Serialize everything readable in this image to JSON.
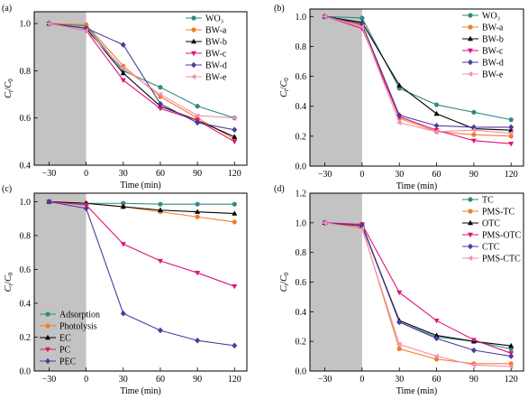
{
  "chart_data": [
    {
      "panel": "(a)",
      "type": "line",
      "xlabel": "Time (min)",
      "ylabel": "C_t/C_0",
      "x": [
        -30,
        0,
        30,
        60,
        90,
        120
      ],
      "xlim": [
        -42,
        130
      ],
      "ylim": [
        0.4,
        1.05
      ],
      "yticks": [
        "0.4",
        "0.6",
        "0.8",
        "1.0"
      ],
      "ytick_values": [
        0.4,
        0.6,
        0.8,
        1.0
      ],
      "shade": [
        -42,
        0
      ],
      "legend": "top-right",
      "series": [
        {
          "name": "WO₃",
          "color": "#2e8b82",
          "marker": "circle",
          "values": [
            1.0,
            0.99,
            0.8,
            0.73,
            0.65,
            0.6
          ]
        },
        {
          "name": "BW-a",
          "color": "#f07f2a",
          "marker": "circle",
          "values": [
            1.0,
            0.995,
            0.82,
            0.69,
            0.6,
            0.51
          ]
        },
        {
          "name": "BW-b",
          "color": "#000000",
          "marker": "triangle",
          "values": [
            1.0,
            0.98,
            0.79,
            0.65,
            0.59,
            0.52
          ]
        },
        {
          "name": "BW-c",
          "color": "#e0137a",
          "marker": "triangle-down",
          "values": [
            1.0,
            0.97,
            0.76,
            0.64,
            0.59,
            0.5
          ]
        },
        {
          "name": "BW-d",
          "color": "#4d3a9c",
          "marker": "diamond",
          "values": [
            1.0,
            0.98,
            0.91,
            0.66,
            0.58,
            0.55
          ]
        },
        {
          "name": "BW-e",
          "color": "#f28fb2",
          "marker": "triangle-left",
          "values": [
            1.0,
            0.97,
            0.81,
            0.7,
            0.61,
            0.6
          ]
        }
      ]
    },
    {
      "panel": "(b)",
      "type": "line",
      "xlabel": "Time (min)",
      "ylabel": "C_t/C_0",
      "x": [
        -30,
        0,
        30,
        60,
        90,
        120
      ],
      "xlim": [
        -42,
        130
      ],
      "ylim": [
        0.0,
        1.05
      ],
      "yticks": [
        "0.0",
        "0.2",
        "0.4",
        "0.6",
        "0.8",
        "1.0"
      ],
      "ytick_values": [
        0.0,
        0.2,
        0.4,
        0.6,
        0.8,
        1.0
      ],
      "shade": [
        -42,
        0
      ],
      "legend": "top-right",
      "series": [
        {
          "name": "WO₃",
          "color": "#2e8b82",
          "marker": "circle",
          "values": [
            1.0,
            0.99,
            0.52,
            0.41,
            0.36,
            0.31
          ]
        },
        {
          "name": "BW-a",
          "color": "#f07f2a",
          "marker": "circle",
          "values": [
            1.0,
            0.94,
            0.32,
            0.23,
            0.21,
            0.2
          ]
        },
        {
          "name": "BW-b",
          "color": "#000000",
          "marker": "triangle",
          "values": [
            1.0,
            0.96,
            0.54,
            0.35,
            0.25,
            0.24
          ]
        },
        {
          "name": "BW-c",
          "color": "#e0137a",
          "marker": "triangle-down",
          "values": [
            1.0,
            0.92,
            0.33,
            0.24,
            0.17,
            0.15
          ]
        },
        {
          "name": "BW-d",
          "color": "#4d3a9c",
          "marker": "diamond",
          "values": [
            1.0,
            0.95,
            0.34,
            0.27,
            0.26,
            0.26
          ]
        },
        {
          "name": "BW-e",
          "color": "#f28fb2",
          "marker": "triangle-left",
          "values": [
            1.0,
            0.93,
            0.29,
            0.23,
            0.24,
            0.22
          ]
        }
      ]
    },
    {
      "panel": "(c)",
      "type": "line",
      "xlabel": "Time (min)",
      "ylabel": "C_t/C_0",
      "x": [
        -30,
        0,
        30,
        60,
        90,
        120
      ],
      "xlim": [
        -42,
        130
      ],
      "ylim": [
        0.0,
        1.05
      ],
      "yticks": [
        "0.0",
        "0.2",
        "0.4",
        "0.6",
        "0.8",
        "1.0"
      ],
      "ytick_values": [
        0.0,
        0.2,
        0.4,
        0.6,
        0.8,
        1.0
      ],
      "shade": [
        -42,
        0
      ],
      "legend": "bottom-left",
      "series": [
        {
          "name": "Adsorption",
          "color": "#2e8b82",
          "marker": "circle",
          "values": [
            1.0,
            0.99,
            0.99,
            0.985,
            0.985,
            0.985
          ]
        },
        {
          "name": "Photolysis",
          "color": "#f07f2a",
          "marker": "circle",
          "values": [
            1.0,
            0.99,
            0.97,
            0.94,
            0.91,
            0.88
          ]
        },
        {
          "name": "EC",
          "color": "#000000",
          "marker": "triangle",
          "values": [
            1.0,
            0.99,
            0.97,
            0.95,
            0.94,
            0.93
          ]
        },
        {
          "name": "PC",
          "color": "#e0137a",
          "marker": "triangle-down",
          "values": [
            1.0,
            0.98,
            0.75,
            0.65,
            0.58,
            0.5
          ]
        },
        {
          "name": "PEC",
          "color": "#4d3a9c",
          "marker": "diamond",
          "values": [
            1.0,
            0.96,
            0.34,
            0.24,
            0.18,
            0.15
          ]
        }
      ]
    },
    {
      "panel": "(d)",
      "type": "line",
      "xlabel": "Time (min)",
      "ylabel": "C_t/C_0",
      "x": [
        -30,
        0,
        30,
        60,
        90,
        120
      ],
      "xlim": [
        -42,
        130
      ],
      "ylim": [
        0.0,
        1.2
      ],
      "yticks": [
        "0.0",
        "0.2",
        "0.4",
        "0.6",
        "0.8",
        "1.0",
        "1.2"
      ],
      "ytick_values": [
        0.0,
        0.2,
        0.4,
        0.6,
        0.8,
        1.0,
        1.2
      ],
      "shade": [
        -42,
        0
      ],
      "legend": "top-right",
      "series": [
        {
          "name": "TC",
          "color": "#2e8b82",
          "marker": "circle",
          "values": [
            1.0,
            0.99,
            0.33,
            0.23,
            0.2,
            0.15
          ]
        },
        {
          "name": "PMS-TC",
          "color": "#f07f2a",
          "marker": "circle",
          "values": [
            1.0,
            0.97,
            0.15,
            0.08,
            0.05,
            0.05
          ]
        },
        {
          "name": "OTC",
          "color": "#000000",
          "marker": "triangle",
          "values": [
            1.0,
            0.98,
            0.34,
            0.24,
            0.2,
            0.17
          ]
        },
        {
          "name": "PMS-OTC",
          "color": "#e0137a",
          "marker": "triangle-down",
          "values": [
            1.0,
            0.99,
            0.53,
            0.34,
            0.21,
            0.12
          ]
        },
        {
          "name": "CTC",
          "color": "#4d3a9c",
          "marker": "diamond",
          "values": [
            1.0,
            0.98,
            0.33,
            0.22,
            0.14,
            0.1
          ]
        },
        {
          "name": "PMS-CTC",
          "color": "#f28fb2",
          "marker": "triangle-left",
          "values": [
            1.0,
            0.96,
            0.18,
            0.1,
            0.04,
            0.03
          ]
        }
      ]
    }
  ]
}
